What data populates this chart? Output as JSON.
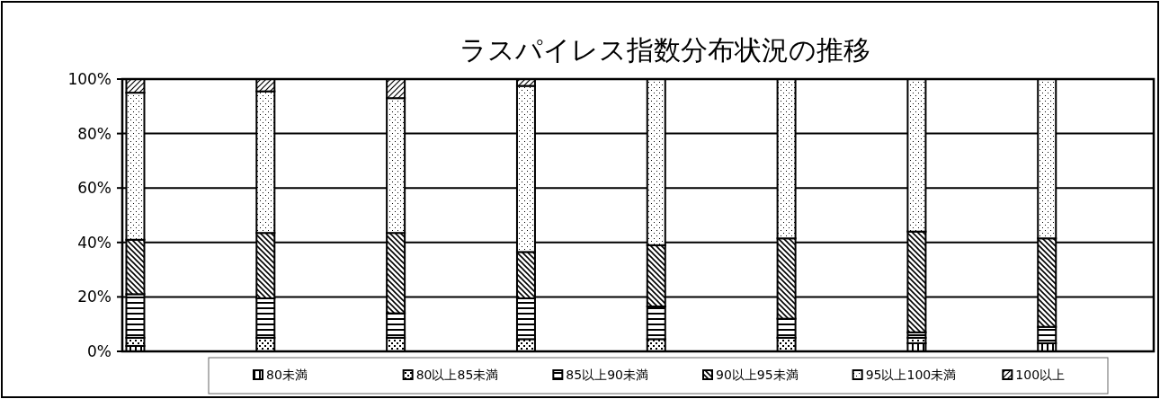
{
  "chart_data": {
    "type": "bar",
    "title": "ラスパイレス指数分布状況の推移",
    "stacked": true,
    "categories": [
      null,
      null,
      null,
      null,
      null,
      null,
      null,
      null
    ],
    "ylim": [
      0,
      100
    ],
    "yticks": [
      {
        "value": 0,
        "label": "0%"
      },
      {
        "value": 20,
        "label": "20%"
      },
      {
        "value": 40,
        "label": "40%"
      },
      {
        "value": 60,
        "label": "60%"
      },
      {
        "value": 80,
        "label": "80%"
      },
      {
        "value": 100,
        "label": "100%"
      }
    ],
    "grid": "y",
    "legend": "bottom",
    "series": [
      {
        "name": "80未満",
        "color": "#000000",
        "values": [
          2,
          0,
          0,
          0,
          0,
          0,
          3,
          3
        ]
      },
      {
        "name": "80以上85未満",
        "color": "#000000",
        "values": [
          3,
          5,
          5,
          4.5,
          4.5,
          5,
          2,
          0
        ]
      },
      {
        "name": "85以上90未満",
        "color": "#000000",
        "values": [
          16,
          14.5,
          9,
          15,
          12,
          7,
          2,
          6
        ]
      },
      {
        "name": "90以上95未満",
        "color": "#000000",
        "values": [
          20,
          24,
          29.5,
          17,
          22.5,
          29.5,
          37,
          32.5
        ]
      },
      {
        "name": "95以上100未満",
        "color": "#000000",
        "values": [
          54,
          52,
          49.5,
          61,
          61,
          58.5,
          56,
          58.5
        ]
      },
      {
        "name": "100以上",
        "color": "#000000",
        "values": [
          5,
          4.5,
          7,
          2.5,
          0,
          0,
          0,
          0
        ]
      }
    ]
  }
}
